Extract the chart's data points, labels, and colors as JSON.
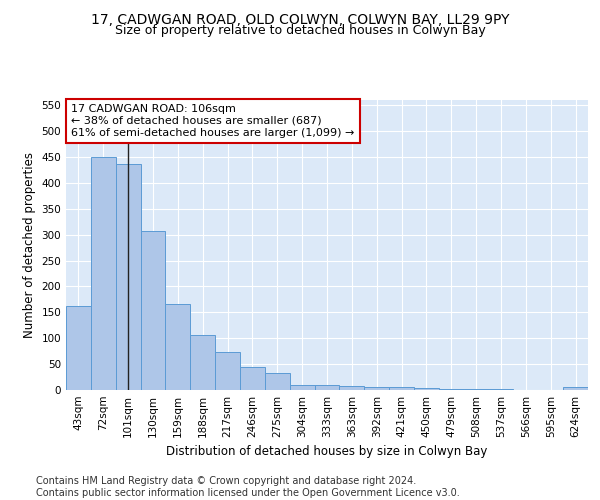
{
  "title1": "17, CADWGAN ROAD, OLD COLWYN, COLWYN BAY, LL29 9PY",
  "title2": "Size of property relative to detached houses in Colwyn Bay",
  "xlabel": "Distribution of detached houses by size in Colwyn Bay",
  "ylabel": "Number of detached properties",
  "categories": [
    "43sqm",
    "72sqm",
    "101sqm",
    "130sqm",
    "159sqm",
    "188sqm",
    "217sqm",
    "246sqm",
    "275sqm",
    "304sqm",
    "333sqm",
    "363sqm",
    "392sqm",
    "421sqm",
    "450sqm",
    "479sqm",
    "508sqm",
    "537sqm",
    "566sqm",
    "595sqm",
    "624sqm"
  ],
  "values": [
    163,
    450,
    436,
    307,
    167,
    106,
    74,
    45,
    32,
    10,
    9,
    8,
    5,
    5,
    3,
    2,
    2,
    1,
    0,
    0,
    5
  ],
  "bar_color": "#aec6e8",
  "bar_edge_color": "#5b9bd5",
  "highlight_bar_index": 2,
  "highlight_line_color": "#222222",
  "annotation_text": "17 CADWGAN ROAD: 106sqm\n← 38% of detached houses are smaller (687)\n61% of semi-detached houses are larger (1,099) →",
  "annotation_box_color": "#ffffff",
  "annotation_box_edge_color": "#cc0000",
  "ylim": [
    0,
    560
  ],
  "yticks": [
    0,
    50,
    100,
    150,
    200,
    250,
    300,
    350,
    400,
    450,
    500,
    550
  ],
  "background_color": "#dce9f8",
  "footer_text": "Contains HM Land Registry data © Crown copyright and database right 2024.\nContains public sector information licensed under the Open Government Licence v3.0.",
  "title_fontsize": 10,
  "subtitle_fontsize": 9,
  "axis_label_fontsize": 8.5,
  "tick_fontsize": 7.5,
  "annotation_fontsize": 8,
  "footer_fontsize": 7
}
